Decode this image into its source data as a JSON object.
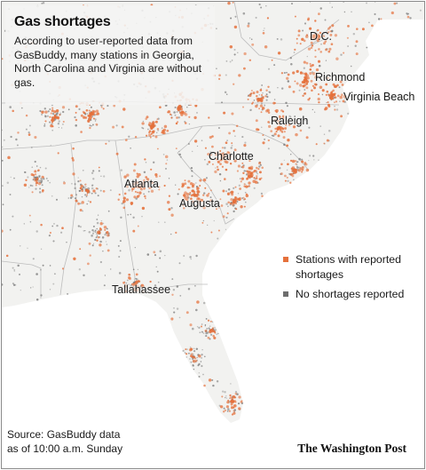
{
  "header": {
    "title": "Gas shortages",
    "description": "According to user-reported data from GasBuddy, many stations in Georgia, North Carolina and Virginia are without gas."
  },
  "cities": [
    {
      "id": "dc",
      "name": "D.C."
    },
    {
      "id": "richmond",
      "name": "Richmond"
    },
    {
      "id": "virginia-beach",
      "name": "Virginia Beach"
    },
    {
      "id": "raleigh",
      "name": "Raleigh"
    },
    {
      "id": "charlotte",
      "name": "Charlotte"
    },
    {
      "id": "atlanta",
      "name": "Atlanta"
    },
    {
      "id": "augusta",
      "name": "Augusta"
    },
    {
      "id": "tallahassee",
      "name": "Tallahassee"
    }
  ],
  "legend": {
    "shortage_label": "Stations with reported shortages",
    "no_shortage_label": "No shortages reported"
  },
  "source": {
    "line1": "Source: GasBuddy data",
    "line2": "as of 10:00 a.m. Sunday"
  },
  "credit": "The Washington Post",
  "colors": {
    "shortage": "#e5713c",
    "no_shortage": "#6e6e6e",
    "land": "#f2f2f0",
    "water": "#ffffff",
    "border": "#bdbdbd"
  }
}
